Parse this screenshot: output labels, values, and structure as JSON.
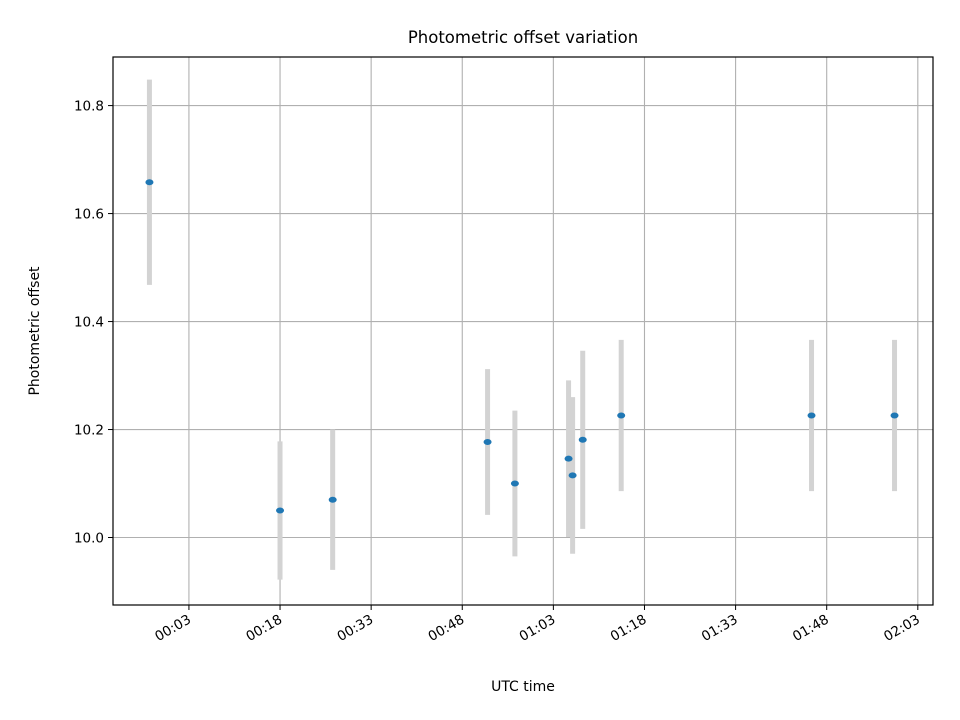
{
  "chart_data": {
    "type": "scatter",
    "title": "Photometric offset variation",
    "xlabel": "UTC time",
    "ylabel": "Photometric offset",
    "x_is_time": true,
    "xlim": [
      "23:50:30",
      "02:05:30"
    ],
    "ylim": [
      9.875,
      10.89
    ],
    "yticks": [
      10.0,
      10.2,
      10.4,
      10.6,
      10.8
    ],
    "xticks": [
      "00:03",
      "00:18",
      "00:33",
      "00:48",
      "01:03",
      "01:18",
      "01:33",
      "01:48",
      "02:03"
    ],
    "xtick_times": [
      "00:03:00",
      "00:18:00",
      "00:33:00",
      "00:48:00",
      "01:03:00",
      "01:18:00",
      "01:33:00",
      "01:48:00",
      "02:03:00"
    ],
    "grid": true,
    "colors": {
      "point": "#1f77b4",
      "errorbar": "#d3d3d3",
      "grid": "#b0b0b0"
    },
    "points": [
      {
        "x": "23:56:30",
        "y": 10.658,
        "err": 0.19
      },
      {
        "x": "00:18:00",
        "y": 10.05,
        "err": 0.128
      },
      {
        "x": "00:26:40",
        "y": 10.07,
        "err": 0.13
      },
      {
        "x": "00:52:10",
        "y": 10.177,
        "err": 0.135
      },
      {
        "x": "00:56:40",
        "y": 10.1,
        "err": 0.135
      },
      {
        "x": "01:05:30",
        "y": 10.146,
        "err": 0.145
      },
      {
        "x": "01:06:10",
        "y": 10.115,
        "err": 0.145
      },
      {
        "x": "01:07:50",
        "y": 10.181,
        "err": 0.165
      },
      {
        "x": "01:14:10",
        "y": 10.226,
        "err": 0.14
      },
      {
        "x": "01:45:30",
        "y": 10.226,
        "err": 0.14
      },
      {
        "x": "01:59:10",
        "y": 10.226,
        "err": 0.14
      }
    ]
  }
}
